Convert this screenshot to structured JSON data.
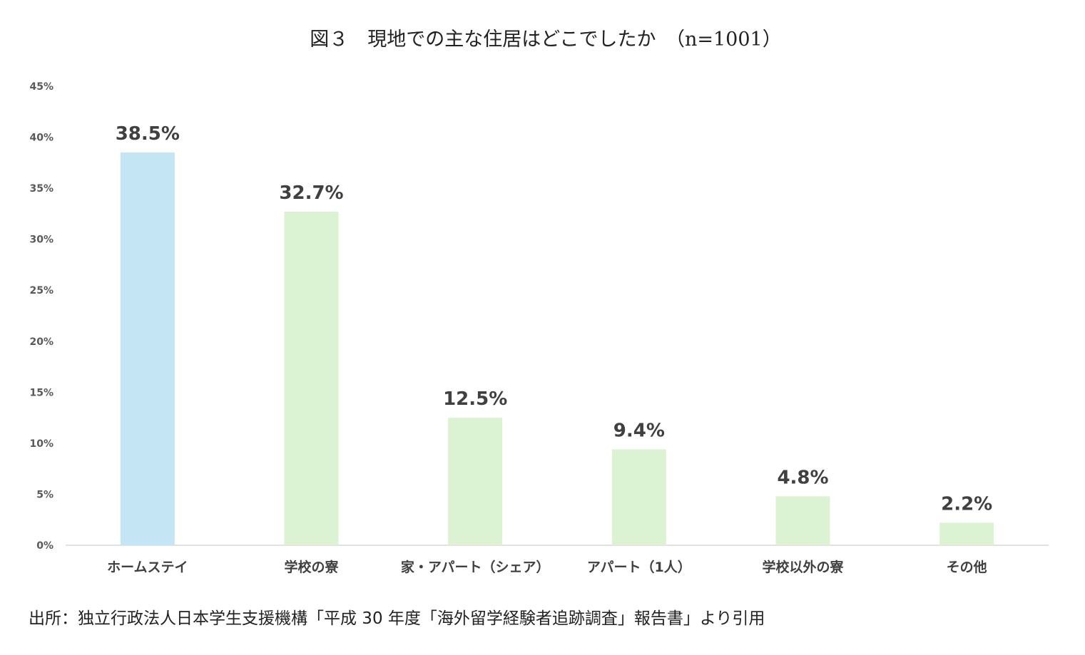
{
  "chart_data": {
    "type": "bar",
    "title": "図３　現地での主な住居はどこでしたか　（n=1001）",
    "categories": [
      "ホームステイ",
      "学校の寮",
      "家・アパート（シェア）",
      "アパート（1人）",
      "学校以外の寮",
      "その他"
    ],
    "values": [
      38.5,
      32.7,
      12.5,
      9.4,
      4.8,
      2.2
    ],
    "data_labels": [
      "38.5%",
      "32.7%",
      "12.5%",
      "9.4%",
      "4.8%",
      "2.2%"
    ],
    "ylim": [
      0,
      45
    ],
    "yticks": [
      0,
      5,
      10,
      15,
      20,
      25,
      30,
      35,
      40,
      45
    ],
    "ytick_labels": [
      "0%",
      "5%",
      "10%",
      "15%",
      "20%",
      "25%",
      "30%",
      "35%",
      "40%",
      "45%"
    ],
    "bar_colors": [
      "#c3e5f4",
      "#dbf2d3",
      "#dbf2d3",
      "#dbf2d3",
      "#dbf2d3",
      "#dbf2d3"
    ],
    "grid": false,
    "xlabel": "",
    "ylabel": ""
  },
  "source": "出所：独立行政法人日本学生支援機構「平成 30 年度「海外留学経験者追跡調査」報告書」より引用"
}
